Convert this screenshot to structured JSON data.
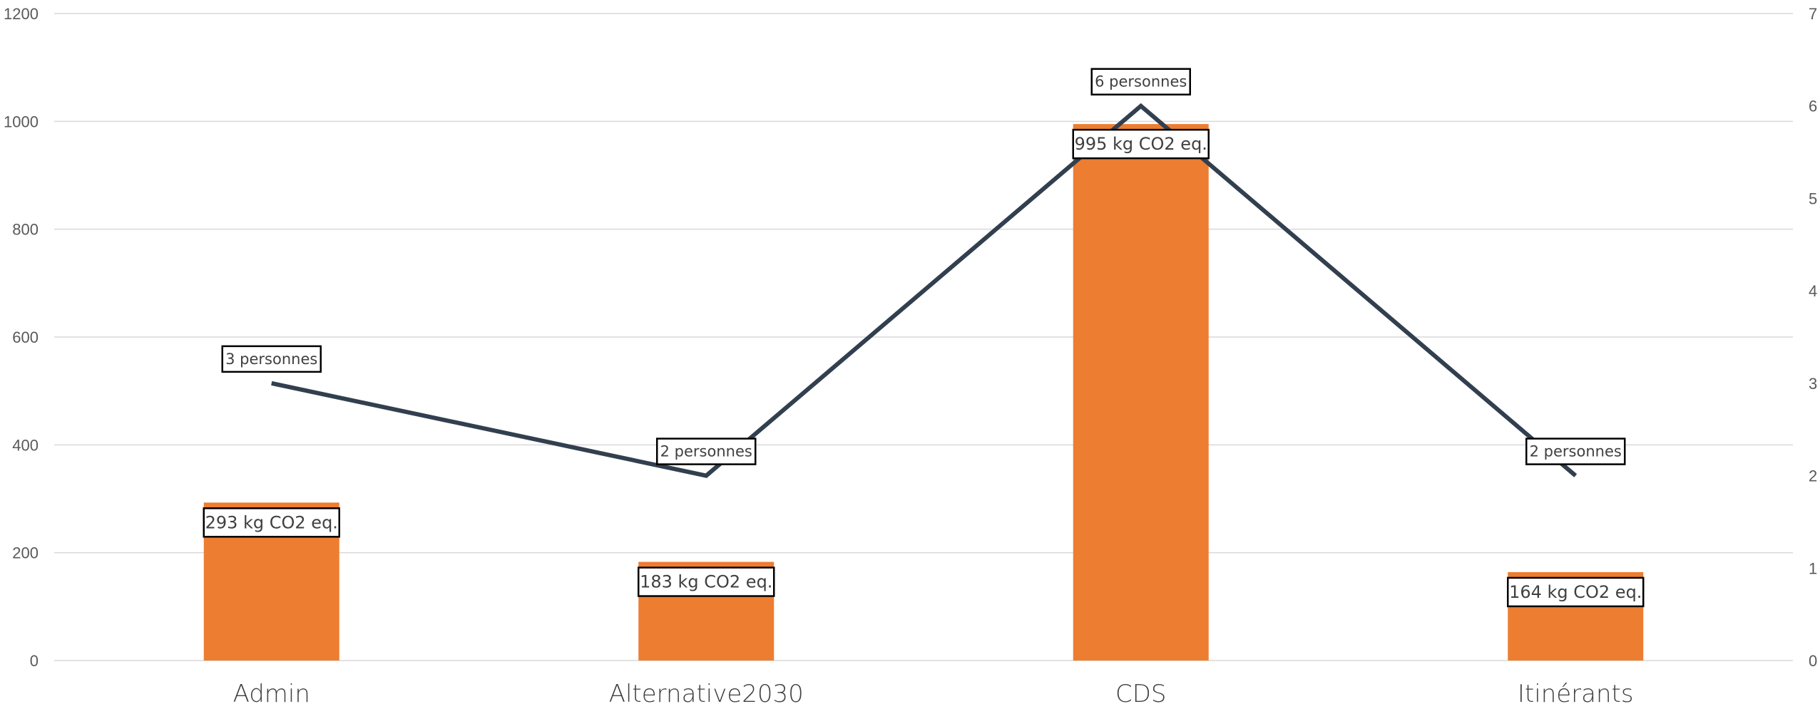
{
  "chart_data": {
    "type": "bar",
    "categories": [
      "Admin",
      "Alternative2030",
      "CDS",
      "Itinérants"
    ],
    "series": [
      {
        "values": [
          293,
          183,
          995,
          164
        ],
        "axis": "left",
        "color": "#ED7D31",
        "data_labels": [
          "293 kg CO2 eq.",
          "183 kg CO2 eq.",
          "995 kg CO2 eq.",
          "164 kg CO2 eq."
        ]
      },
      {
        "type": "line",
        "values": [
          3,
          2,
          6,
          2
        ],
        "axis": "right",
        "color": "#323F4F",
        "data_labels": [
          "3  personnes",
          "2  personnes",
          "6  personnes",
          "2  personnes"
        ]
      }
    ],
    "y_left": {
      "ylim": [
        0,
        1200
      ],
      "ticks": [
        "0",
        "200",
        "400",
        "600",
        "800",
        "1000",
        "1200"
      ]
    },
    "y_right": {
      "ylim": [
        0,
        7
      ],
      "ticks": [
        "0",
        "1",
        "2",
        "3",
        "4",
        "5",
        "6",
        "7"
      ]
    },
    "grid": true,
    "legend": "none"
  }
}
